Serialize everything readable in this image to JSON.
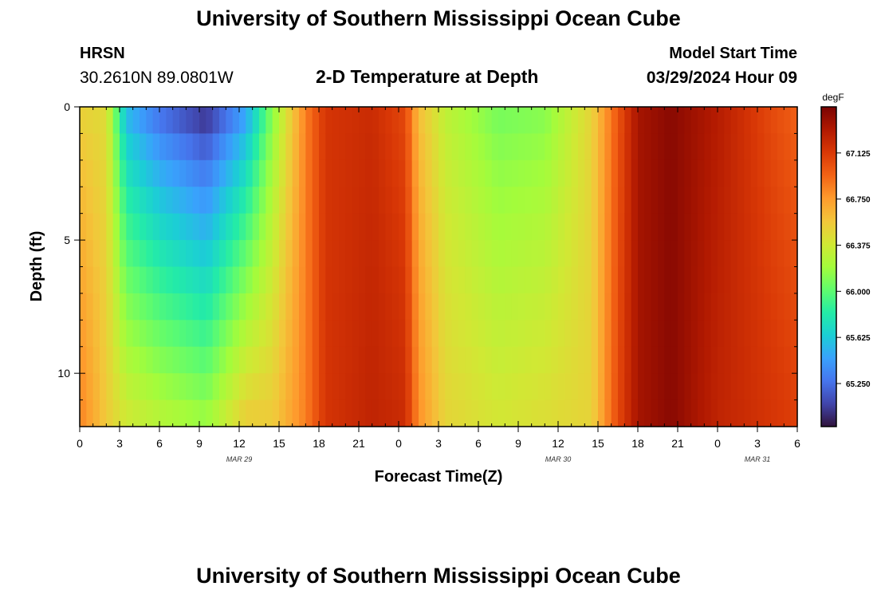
{
  "header": {
    "title": "University of Southern Mississippi Ocean Cube",
    "station": "HRSN",
    "coordinates": "30.2610N  89.0801W",
    "subtitle": "2-D Temperature at Depth",
    "model_start_label": "Model Start Time",
    "model_start_value": "03/29/2024 Hour 09"
  },
  "footer": {
    "title": "University of Southern Mississippi Ocean Cube"
  },
  "chart_data": {
    "type": "heatmap",
    "title": "2-D Temperature at Depth",
    "xlabel": "Forecast Time(Z)",
    "ylabel": "Depth (ft)",
    "x_range_hours": [
      0,
      54
    ],
    "x_ticks": [
      {
        "hour": 0,
        "label": "0"
      },
      {
        "hour": 3,
        "label": "3"
      },
      {
        "hour": 6,
        "label": "6"
      },
      {
        "hour": 9,
        "label": "9"
      },
      {
        "hour": 12,
        "label": "12"
      },
      {
        "hour": 15,
        "label": "15"
      },
      {
        "hour": 18,
        "label": "18"
      },
      {
        "hour": 21,
        "label": "21"
      },
      {
        "hour": 24,
        "label": "0"
      },
      {
        "hour": 27,
        "label": "3"
      },
      {
        "hour": 30,
        "label": "6"
      },
      {
        "hour": 33,
        "label": "9"
      },
      {
        "hour": 36,
        "label": "12"
      },
      {
        "hour": 39,
        "label": "15"
      },
      {
        "hour": 42,
        "label": "18"
      },
      {
        "hour": 45,
        "label": "21"
      },
      {
        "hour": 48,
        "label": "0"
      },
      {
        "hour": 51,
        "label": "3"
      },
      {
        "hour": 54,
        "label": "6"
      }
    ],
    "date_labels": [
      {
        "hour": 12,
        "label": "MAR 29"
      },
      {
        "hour": 36,
        "label": "MAR 30"
      },
      {
        "hour": 51,
        "label": "MAR 31"
      }
    ],
    "y_range": [
      0,
      12
    ],
    "y_ticks": [
      0,
      5,
      10
    ],
    "colorbar": {
      "unit": "degF",
      "range": [
        64.9,
        67.5
      ],
      "tick_values": [
        65.25,
        65.625,
        66.0,
        66.375,
        66.75,
        67.125
      ],
      "tick_labels": [
        "65.250",
        "65.625",
        "66.000",
        "66.375",
        "66.750",
        "67.125"
      ],
      "colors": [
        "#30123b",
        "#4145ab",
        "#4675ed",
        "#39a2fc",
        "#1bcfd4",
        "#24eca6",
        "#61fc6c",
        "#a4fc3b",
        "#d1e834",
        "#f3c63a",
        "#fe9b2d",
        "#f36315",
        "#d93806",
        "#b11901",
        "#7a0402"
      ]
    },
    "keyframes": [
      {
        "hour": 0,
        "surface": 66.5,
        "bottom": 66.85
      },
      {
        "hour": 2,
        "surface": 66.45,
        "bottom": 66.55
      },
      {
        "hour": 3.5,
        "surface": 65.5,
        "bottom": 66.4
      },
      {
        "hour": 6,
        "surface": 65.2,
        "bottom": 66.3
      },
      {
        "hour": 9.5,
        "surface": 64.95,
        "bottom": 66.2
      },
      {
        "hour": 12.5,
        "surface": 65.4,
        "bottom": 66.55
      },
      {
        "hour": 14.5,
        "surface": 66.1,
        "bottom": 66.55
      },
      {
        "hour": 17,
        "surface": 66.85,
        "bottom": 66.85
      },
      {
        "hour": 18.5,
        "surface": 67.15,
        "bottom": 67.15
      },
      {
        "hour": 22,
        "surface": 67.2,
        "bottom": 67.25
      },
      {
        "hour": 24.5,
        "surface": 67.05,
        "bottom": 67.2
      },
      {
        "hour": 25.5,
        "surface": 66.6,
        "bottom": 66.8
      },
      {
        "hour": 27.5,
        "surface": 66.3,
        "bottom": 66.5
      },
      {
        "hour": 31.5,
        "surface": 66.05,
        "bottom": 66.4
      },
      {
        "hour": 35,
        "surface": 66.1,
        "bottom": 66.45
      },
      {
        "hour": 38.5,
        "surface": 66.5,
        "bottom": 66.5
      },
      {
        "hour": 40.5,
        "surface": 67.0,
        "bottom": 67.05
      },
      {
        "hour": 42,
        "surface": 67.35,
        "bottom": 67.35
      },
      {
        "hour": 44.5,
        "surface": 67.45,
        "bottom": 67.45
      },
      {
        "hour": 48,
        "surface": 67.3,
        "bottom": 67.25
      },
      {
        "hour": 52,
        "surface": 67.05,
        "bottom": 67.15
      },
      {
        "hour": 54,
        "surface": 66.95,
        "bottom": 67.1
      }
    ]
  }
}
